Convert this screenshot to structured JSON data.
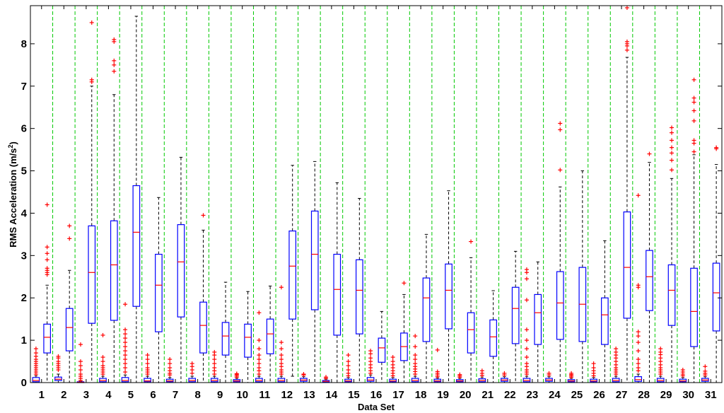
{
  "chart_data": {
    "type": "box",
    "title": "",
    "xlabel": "Data Set",
    "ylabel": "RMS Acceleration (m/s",
    "ylabel_sup": "2",
    "ylabel_close": ")",
    "ylim": [
      0,
      8.9
    ],
    "y_ticks": [
      0,
      1,
      2,
      3,
      4,
      5,
      6,
      7,
      8
    ],
    "grid": "vertical dashed between data sets",
    "colors": {
      "box": "#0000ff",
      "median": "#ff0000",
      "whisker": "#000000",
      "outlier": "#ff0000",
      "grid": "#00c800"
    },
    "categories": [
      "1",
      "2",
      "3",
      "4",
      "5",
      "6",
      "7",
      "8",
      "9",
      "10",
      "11",
      "12",
      "13",
      "14",
      "15",
      "16",
      "17",
      "18",
      "19",
      "20",
      "21",
      "22",
      "23",
      "24",
      "25",
      "26",
      "27",
      "28",
      "29",
      "30",
      "31"
    ],
    "boxes": [
      {
        "q1": 0.02,
        "median": 0.05,
        "q3": 0.12,
        "whislo": 0.0,
        "whishi": 0.16,
        "outliers": [
          0.2,
          0.25,
          0.3,
          0.35,
          0.4,
          0.45,
          0.5,
          0.55,
          0.62,
          0.7,
          0.8
        ]
      },
      {
        "q1": 0.7,
        "median": 1.07,
        "q3": 1.38,
        "whislo": 0.0,
        "whishi": 2.3,
        "outliers": [
          2.55,
          2.6,
          2.65,
          2.7,
          2.9,
          3.05,
          3.2,
          4.2
        ]
      },
      {
        "q1": 0.05,
        "median": 0.08,
        "q3": 0.13,
        "whislo": 0.0,
        "whishi": 0.2,
        "outliers": [
          0.3,
          0.35,
          0.4,
          0.45,
          0.5,
          0.58,
          0.62
        ]
      },
      {
        "q1": 0.75,
        "median": 1.3,
        "q3": 1.75,
        "whislo": 0.0,
        "whishi": 2.65,
        "outliers": [
          3.4,
          3.7
        ]
      },
      {
        "q1": 0.0,
        "median": 0.01,
        "q3": 0.02,
        "whislo": 0.0,
        "whishi": 0.03,
        "outliers": [
          0.05,
          0.1,
          0.15,
          0.2,
          0.3,
          0.4,
          0.5,
          0.9
        ]
      },
      {
        "q1": 1.4,
        "median": 2.6,
        "q3": 3.7,
        "whislo": 0.0,
        "whishi": 7.0,
        "outliers": [
          7.1,
          7.15,
          8.5
        ]
      },
      {
        "q1": 0.02,
        "median": 0.05,
        "q3": 0.1,
        "whislo": 0.0,
        "whishi": 0.15,
        "outliers": [
          0.2,
          0.25,
          0.3,
          0.35,
          0.4,
          0.5,
          0.6,
          1.12
        ]
      },
      {
        "q1": 1.47,
        "median": 2.78,
        "q3": 3.82,
        "whislo": 0.0,
        "whishi": 6.8,
        "outliers": [
          7.35,
          7.5,
          7.6,
          8.05,
          8.1
        ]
      },
      {
        "q1": 0.02,
        "median": 0.05,
        "q3": 0.12,
        "whislo": 0.0,
        "whishi": 0.18,
        "outliers": [
          0.25,
          0.35,
          0.45,
          0.55,
          0.65,
          0.75,
          0.85,
          0.95,
          1.05,
          1.15,
          1.25,
          1.85
        ]
      },
      {
        "q1": 1.8,
        "median": 3.55,
        "q3": 4.65,
        "whislo": 0.0,
        "whishi": 8.65,
        "outliers": []
      },
      {
        "q1": 0.02,
        "median": 0.04,
        "q3": 0.1,
        "whislo": 0.0,
        "whishi": 0.15,
        "outliers": [
          0.2,
          0.25,
          0.3,
          0.35,
          0.45,
          0.55,
          0.65
        ]
      },
      {
        "q1": 1.2,
        "median": 2.3,
        "q3": 3.03,
        "whislo": 0.0,
        "whishi": 4.37,
        "outliers": []
      },
      {
        "q1": 0.02,
        "median": 0.04,
        "q3": 0.08,
        "whislo": 0.0,
        "whishi": 0.12,
        "outliers": [
          0.18,
          0.22,
          0.28,
          0.35,
          0.45,
          0.55
        ]
      },
      {
        "q1": 1.55,
        "median": 2.85,
        "q3": 3.73,
        "whislo": 0.0,
        "whishi": 5.32,
        "outliers": []
      },
      {
        "q1": 0.02,
        "median": 0.05,
        "q3": 0.1,
        "whislo": 0.0,
        "whishi": 0.15,
        "outliers": [
          0.22,
          0.3,
          0.38,
          0.45
        ]
      },
      {
        "q1": 0.7,
        "median": 1.35,
        "q3": 1.9,
        "whislo": 0.0,
        "whishi": 3.6,
        "outliers": [
          3.95
        ]
      },
      {
        "q1": 0.02,
        "median": 0.05,
        "q3": 0.1,
        "whislo": 0.0,
        "whishi": 0.15,
        "outliers": [
          0.2,
          0.28,
          0.35,
          0.45,
          0.55,
          0.65,
          0.72
        ]
      },
      {
        "q1": 0.65,
        "median": 1.1,
        "q3": 1.42,
        "whislo": 0.0,
        "whishi": 2.37,
        "outliers": []
      },
      {
        "q1": 0.02,
        "median": 0.04,
        "q3": 0.07,
        "whislo": 0.0,
        "whishi": 0.1,
        "outliers": [
          0.13,
          0.16,
          0.19,
          0.21
        ]
      },
      {
        "q1": 0.6,
        "median": 1.07,
        "q3": 1.38,
        "whislo": 0.0,
        "whishi": 2.15,
        "outliers": []
      },
      {
        "q1": 0.02,
        "median": 0.05,
        "q3": 0.1,
        "whislo": 0.0,
        "whishi": 0.15,
        "outliers": [
          0.2,
          0.28,
          0.35,
          0.45,
          0.55,
          0.65,
          0.8,
          1.0,
          1.65
        ]
      },
      {
        "q1": 0.68,
        "median": 1.15,
        "q3": 1.5,
        "whislo": 0.0,
        "whishi": 2.28,
        "outliers": []
      },
      {
        "q1": 0.02,
        "median": 0.05,
        "q3": 0.1,
        "whislo": 0.0,
        "whishi": 0.15,
        "outliers": [
          0.2,
          0.25,
          0.3,
          0.38,
          0.45,
          0.55,
          0.65,
          0.8,
          0.95,
          2.25
        ]
      },
      {
        "q1": 1.5,
        "median": 2.75,
        "q3": 3.58,
        "whislo": 0.15,
        "whishi": 5.13,
        "outliers": []
      },
      {
        "q1": 0.03,
        "median": 0.06,
        "q3": 0.1,
        "whislo": 0.0,
        "whishi": 0.14,
        "outliers": [
          0.18,
          0.2
        ]
      },
      {
        "q1": 1.72,
        "median": 3.03,
        "q3": 4.05,
        "whislo": 0.0,
        "whishi": 5.22,
        "outliers": []
      },
      {
        "q1": 0.01,
        "median": 0.03,
        "q3": 0.05,
        "whislo": 0.0,
        "whishi": 0.08,
        "outliers": [
          0.1,
          0.13
        ]
      },
      {
        "q1": 1.12,
        "median": 2.2,
        "q3": 3.03,
        "whislo": 0.0,
        "whishi": 4.72,
        "outliers": []
      },
      {
        "q1": 0.02,
        "median": 0.04,
        "q3": 0.08,
        "whislo": 0.0,
        "whishi": 0.12,
        "outliers": [
          0.16,
          0.22,
          0.3,
          0.4,
          0.5,
          0.65
        ]
      },
      {
        "q1": 1.15,
        "median": 2.18,
        "q3": 2.9,
        "whislo": 0.0,
        "whishi": 4.35,
        "outliers": []
      },
      {
        "q1": 0.03,
        "median": 0.06,
        "q3": 0.12,
        "whislo": 0.0,
        "whishi": 0.18,
        "outliers": [
          0.22,
          0.28,
          0.35,
          0.42,
          0.5,
          0.58,
          0.68,
          0.75
        ]
      },
      {
        "q1": 0.48,
        "median": 0.82,
        "q3": 1.05,
        "whislo": 0.0,
        "whishi": 1.68,
        "outliers": []
      },
      {
        "q1": 0.02,
        "median": 0.04,
        "q3": 0.08,
        "whislo": 0.0,
        "whishi": 0.12,
        "outliers": [
          0.16,
          0.22,
          0.28,
          0.35,
          0.42,
          0.5,
          0.6
        ]
      },
      {
        "q1": 0.52,
        "median": 0.85,
        "q3": 1.17,
        "whislo": 0.0,
        "whishi": 2.08,
        "outliers": [
          2.35
        ]
      },
      {
        "q1": 0.02,
        "median": 0.05,
        "q3": 0.1,
        "whislo": 0.0,
        "whishi": 0.15,
        "outliers": [
          0.2,
          0.26,
          0.32,
          0.38,
          0.45,
          0.55,
          0.65,
          0.85,
          1.1
        ]
      },
      {
        "q1": 0.97,
        "median": 2.0,
        "q3": 2.47,
        "whislo": 0.0,
        "whishi": 3.5,
        "outliers": []
      },
      {
        "q1": 0.02,
        "median": 0.04,
        "q3": 0.08,
        "whislo": 0.0,
        "whishi": 0.11,
        "outliers": [
          0.14,
          0.18,
          0.22,
          0.26,
          0.77
        ]
      },
      {
        "q1": 1.27,
        "median": 2.18,
        "q3": 2.8,
        "whislo": 0.0,
        "whishi": 4.53,
        "outliers": []
      },
      {
        "q1": 0.02,
        "median": 0.04,
        "q3": 0.07,
        "whislo": 0.0,
        "whishi": 0.1,
        "outliers": [
          0.13,
          0.16,
          0.19
        ]
      },
      {
        "q1": 0.7,
        "median": 1.25,
        "q3": 1.65,
        "whislo": 0.0,
        "whishi": 2.95,
        "outliers": [
          3.33
        ]
      },
      {
        "q1": 0.02,
        "median": 0.05,
        "q3": 0.09,
        "whislo": 0.0,
        "whishi": 0.13,
        "outliers": [
          0.17,
          0.22,
          0.28
        ]
      },
      {
        "q1": 0.62,
        "median": 1.08,
        "q3": 1.48,
        "whislo": 0.0,
        "whishi": 2.17,
        "outliers": []
      },
      {
        "q1": 0.03,
        "median": 0.06,
        "q3": 0.1,
        "whislo": 0.0,
        "whishi": 0.14,
        "outliers": [
          0.18,
          0.22
        ]
      },
      {
        "q1": 0.92,
        "median": 1.75,
        "q3": 2.25,
        "whislo": 0.0,
        "whishi": 3.1,
        "outliers": []
      },
      {
        "q1": 0.02,
        "median": 0.05,
        "q3": 0.1,
        "whislo": 0.0,
        "whishi": 0.15,
        "outliers": [
          0.2,
          0.25,
          0.3,
          0.38,
          0.45,
          0.6,
          0.8,
          1.0,
          1.25,
          1.95,
          2.45,
          2.6,
          2.67
        ]
      },
      {
        "q1": 0.9,
        "median": 1.65,
        "q3": 2.08,
        "whislo": 0.0,
        "whishi": 2.85,
        "outliers": []
      },
      {
        "q1": 0.03,
        "median": 0.06,
        "q3": 0.1,
        "whislo": 0.0,
        "whishi": 0.14,
        "outliers": [
          0.18,
          0.22
        ]
      },
      {
        "q1": 1.02,
        "median": 1.88,
        "q3": 2.62,
        "whislo": 0.0,
        "whishi": 4.62,
        "outliers": [
          5.02,
          5.97,
          6.12
        ]
      },
      {
        "q1": 0.02,
        "median": 0.04,
        "q3": 0.07,
        "whislo": 0.0,
        "whishi": 0.1,
        "outliers": [
          0.13,
          0.16,
          0.19,
          0.22
        ]
      },
      {
        "q1": 0.97,
        "median": 1.85,
        "q3": 2.72,
        "whislo": 0.0,
        "whishi": 5.0,
        "outliers": []
      },
      {
        "q1": 0.02,
        "median": 0.04,
        "q3": 0.08,
        "whislo": 0.0,
        "whishi": 0.12,
        "outliers": [
          0.16,
          0.22,
          0.28,
          0.35,
          0.45
        ]
      },
      {
        "q1": 0.9,
        "median": 1.6,
        "q3": 2.0,
        "whislo": 0.0,
        "whishi": 3.35,
        "outliers": []
      },
      {
        "q1": 0.02,
        "median": 0.05,
        "q3": 0.1,
        "whislo": 0.0,
        "whishi": 0.15,
        "outliers": [
          0.2,
          0.25,
          0.3,
          0.35,
          0.42,
          0.5,
          0.58,
          0.65,
          0.72,
          0.8
        ]
      },
      {
        "q1": 1.52,
        "median": 2.72,
        "q3": 4.03,
        "whislo": 0.0,
        "whishi": 7.68,
        "outliers": [
          7.85,
          7.95,
          8.0,
          8.05,
          8.85
        ]
      },
      {
        "q1": 0.03,
        "median": 0.07,
        "q3": 0.14,
        "whislo": 0.0,
        "whishi": 0.2,
        "outliers": [
          0.28,
          0.35,
          0.45,
          0.55,
          0.75,
          0.95,
          1.1,
          1.2,
          2.25,
          2.3,
          4.42
        ]
      },
      {
        "q1": 1.7,
        "median": 2.5,
        "q3": 3.12,
        "whislo": 0.0,
        "whishi": 5.2,
        "outliers": [
          5.4
        ]
      },
      {
        "q1": 0.02,
        "median": 0.05,
        "q3": 0.1,
        "whislo": 0.0,
        "whishi": 0.15,
        "outliers": [
          0.2,
          0.25,
          0.3,
          0.35,
          0.42,
          0.5,
          0.58,
          0.66,
          0.72,
          0.8
        ]
      },
      {
        "q1": 1.35,
        "median": 2.18,
        "q3": 2.78,
        "whislo": 0.0,
        "whishi": 4.82,
        "outliers": [
          5.02,
          5.25,
          5.42,
          5.55,
          5.72,
          5.9,
          6.02
        ]
      },
      {
        "q1": 0.02,
        "median": 0.04,
        "q3": 0.08,
        "whislo": 0.0,
        "whishi": 0.12,
        "outliers": [
          0.16,
          0.2,
          0.25,
          0.3
        ]
      },
      {
        "q1": 0.85,
        "median": 1.68,
        "q3": 2.7,
        "whislo": 0.0,
        "whishi": 5.38,
        "outliers": [
          5.45,
          5.65,
          5.72,
          6.18,
          6.42,
          6.62,
          6.72,
          7.15
        ]
      },
      {
        "q1": 0.03,
        "median": 0.06,
        "q3": 0.1,
        "whislo": 0.0,
        "whishi": 0.14,
        "outliers": [
          0.18,
          0.22,
          0.27,
          0.38
        ]
      },
      {
        "q1": 1.22,
        "median": 2.12,
        "q3": 2.82,
        "whislo": 0.0,
        "whishi": 5.15,
        "outliers": [
          5.52,
          5.55
        ]
      }
    ],
    "box_positions": [
      0.75,
      1.25,
      1.75,
      2.25,
      2.75,
      3.25,
      3.75,
      4.25,
      4.75,
      5.25,
      5.75,
      6.25,
      6.75,
      7.25,
      7.75,
      8.25,
      8.75,
      9.25,
      9.75,
      10.25,
      10.75,
      11.25,
      11.75,
      12.25,
      12.75,
      13.25,
      13.75,
      14.25,
      14.75,
      15.25,
      15.75,
      16.25,
      16.75,
      17.25,
      17.75,
      18.25,
      18.75,
      19.25,
      19.75,
      20.25,
      20.75,
      21.25,
      21.75,
      22.25,
      22.75,
      23.25,
      23.75,
      24.25,
      24.75,
      25.25,
      25.75,
      26.25,
      26.75,
      27.25,
      27.75,
      28.25,
      28.75,
      29.25,
      29.75,
      30.25,
      30.75,
      31.25
    ]
  }
}
